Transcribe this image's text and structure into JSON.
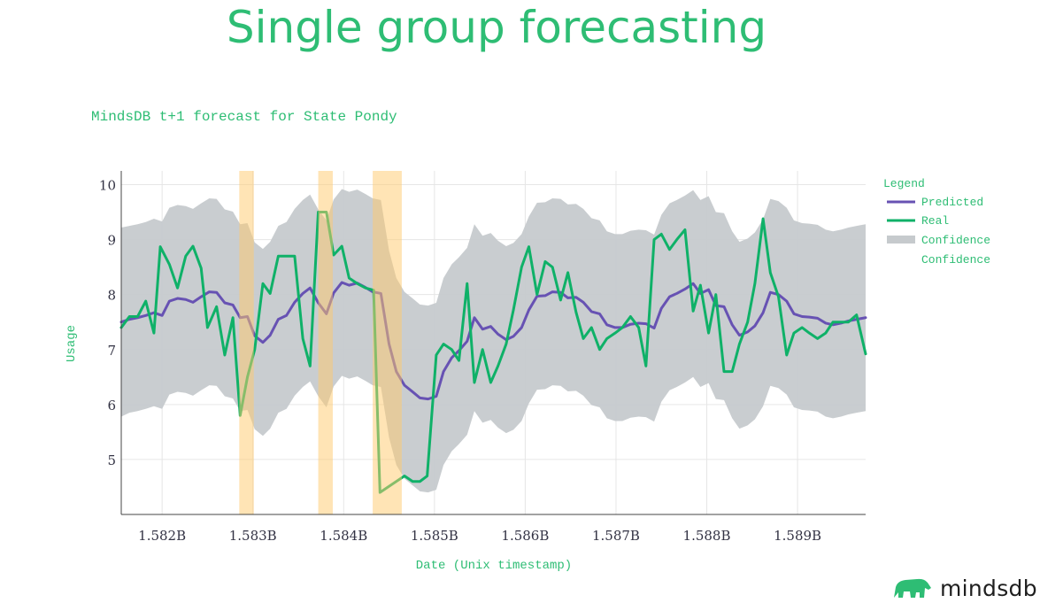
{
  "slide": {
    "title": "Single group forecasting",
    "brand": "mindsdb"
  },
  "colors": {
    "accent": "#2ebd74",
    "predicted": "#6752b3",
    "real": "#0fb168",
    "confidence": "#c6cacd",
    "anomaly": "#ffc96b",
    "axis_text": "#333344",
    "label_text": "#2ebd74"
  },
  "chart_data": {
    "type": "line",
    "title": "MindsDB t+1 forecast for State Pondy",
    "xlabel": "Date (Unix timestamp)",
    "ylabel": "Usage",
    "x_unit": "Unix timestamp",
    "xlim": [
      1581550000,
      1589750000
    ],
    "ylim": [
      4.0,
      10.25
    ],
    "x_ticks": [
      1582000000,
      1583000000,
      1584000000,
      1585000000,
      1586000000,
      1587000000,
      1588000000,
      1589000000
    ],
    "x_tick_labels": [
      "1.582B",
      "1.583B",
      "1.584B",
      "1.585B",
      "1.586B",
      "1.587B",
      "1.588B",
      "1.589B"
    ],
    "y_ticks": [
      5,
      6,
      7,
      8,
      9,
      10
    ],
    "y_tick_labels": [
      "5",
      "6",
      "7",
      "8",
      "9",
      "10"
    ],
    "grid": true,
    "legend": {
      "title": "Legend",
      "position": "right",
      "entries": [
        "Predicted",
        "Real",
        "Confidence",
        "Confidence"
      ]
    },
    "anomaly_ranges": [
      [
        1582850000,
        1583010000
      ],
      [
        1583720000,
        1583880000
      ],
      [
        1584320000,
        1584640000
      ]
    ],
    "series": [
      {
        "name": "Predicted",
        "kind": "line",
        "x": [
          1581550000,
          1581640000,
          1581730000,
          1581820000,
          1581910000,
          1582000000,
          1582080000,
          1582170000,
          1582260000,
          1582340000,
          1582430000,
          1582520000,
          1582600000,
          1582690000,
          1582780000,
          1582860000,
          1582940000,
          1583020000,
          1583110000,
          1583190000,
          1583280000,
          1583370000,
          1583460000,
          1583550000,
          1583630000,
          1583720000,
          1583810000,
          1583890000,
          1583980000,
          1584060000,
          1584150000,
          1584240000,
          1584320000,
          1584410000,
          1584500000,
          1584580000,
          1584670000,
          1584760000,
          1584840000,
          1584930000,
          1585020000,
          1585100000,
          1585190000,
          1585270000,
          1585360000,
          1585440000,
          1585530000,
          1585620000,
          1585700000,
          1585790000,
          1585870000,
          1585960000,
          1586040000,
          1586130000,
          1586220000,
          1586300000,
          1586390000,
          1586470000,
          1586560000,
          1586640000,
          1586730000,
          1586820000,
          1586900000,
          1586990000,
          1587070000,
          1587160000,
          1587250000,
          1587330000,
          1587420000,
          1587500000,
          1587590000,
          1587670000,
          1587760000,
          1587850000,
          1587930000,
          1588020000,
          1588100000,
          1588190000,
          1588280000,
          1588360000,
          1588450000,
          1588530000,
          1588620000,
          1588700000,
          1588790000,
          1588880000,
          1588960000,
          1589050000,
          1589130000,
          1589220000,
          1589310000,
          1589390000,
          1589480000,
          1589560000,
          1589650000,
          1589750000
        ],
        "y": [
          7.5,
          7.55,
          7.58,
          7.62,
          7.67,
          7.62,
          7.88,
          7.93,
          7.91,
          7.86,
          7.96,
          8.05,
          8.04,
          7.85,
          7.81,
          7.58,
          7.6,
          7.25,
          7.13,
          7.26,
          7.55,
          7.62,
          7.86,
          8.02,
          8.12,
          7.85,
          7.65,
          8.03,
          8.22,
          8.17,
          8.21,
          8.13,
          8.05,
          8.02,
          7.1,
          6.6,
          6.35,
          6.23,
          6.12,
          6.1,
          6.15,
          6.6,
          6.85,
          6.98,
          7.15,
          7.58,
          7.37,
          7.42,
          7.28,
          7.18,
          7.24,
          7.4,
          7.72,
          7.97,
          7.98,
          8.05,
          8.04,
          7.94,
          7.95,
          7.86,
          7.69,
          7.65,
          7.45,
          7.4,
          7.4,
          7.46,
          7.48,
          7.47,
          7.39,
          7.75,
          7.96,
          8.02,
          8.1,
          8.2,
          8.02,
          8.09,
          7.8,
          7.78,
          7.45,
          7.26,
          7.32,
          7.43,
          7.67,
          8.04,
          8.0,
          7.88,
          7.65,
          7.6,
          7.59,
          7.57,
          7.48,
          7.45,
          7.48,
          7.52,
          7.55,
          7.58
        ]
      },
      {
        "name": "Real",
        "kind": "line",
        "x": [
          1581550000,
          1581640000,
          1581730000,
          1581820000,
          1581910000,
          1581980000,
          1582080000,
          1582170000,
          1582260000,
          1582340000,
          1582430000,
          1582500000,
          1582600000,
          1582690000,
          1582780000,
          1582860000,
          1582940000,
          1583020000,
          1583110000,
          1583190000,
          1583280000,
          1583370000,
          1583460000,
          1583550000,
          1583630000,
          1583720000,
          1583810000,
          1583890000,
          1583980000,
          1584060000,
          1584150000,
          1584240000,
          1584330000,
          1584400000,
          1584670000,
          1584760000,
          1584840000,
          1584920000,
          1585020000,
          1585100000,
          1585190000,
          1585270000,
          1585360000,
          1585440000,
          1585530000,
          1585620000,
          1585700000,
          1585790000,
          1585870000,
          1585960000,
          1586040000,
          1586130000,
          1586220000,
          1586300000,
          1586390000,
          1586470000,
          1586560000,
          1586640000,
          1586730000,
          1586820000,
          1586900000,
          1586990000,
          1587070000,
          1587160000,
          1587250000,
          1587330000,
          1587420000,
          1587500000,
          1587590000,
          1587670000,
          1587760000,
          1587850000,
          1587930000,
          1588020000,
          1588100000,
          1588190000,
          1588280000,
          1588360000,
          1588450000,
          1588530000,
          1588620000,
          1588700000,
          1588790000,
          1588880000,
          1588960000,
          1589050000,
          1589130000,
          1589220000,
          1589310000,
          1589390000,
          1589480000,
          1589560000,
          1589650000,
          1589750000
        ],
        "y": [
          7.4,
          7.6,
          7.6,
          7.88,
          7.3,
          8.87,
          8.55,
          8.12,
          8.7,
          8.88,
          8.48,
          7.4,
          7.78,
          6.9,
          7.58,
          5.8,
          6.5,
          7.0,
          8.2,
          8.02,
          8.7,
          8.7,
          8.7,
          7.2,
          6.7,
          9.5,
          9.5,
          8.72,
          8.88,
          8.3,
          8.2,
          8.12,
          8.08,
          4.4,
          4.7,
          4.6,
          4.6,
          4.7,
          6.9,
          7.1,
          7.0,
          6.8,
          8.2,
          6.4,
          7.0,
          6.4,
          6.7,
          7.1,
          7.72,
          8.5,
          8.87,
          8.0,
          8.6,
          8.5,
          7.9,
          8.4,
          7.68,
          7.2,
          7.4,
          7.0,
          7.2,
          7.3,
          7.4,
          7.6,
          7.4,
          6.7,
          9.0,
          9.1,
          8.82,
          9.0,
          9.18,
          7.7,
          8.17,
          7.3,
          8.0,
          6.6,
          6.6,
          7.1,
          7.5,
          8.2,
          9.38,
          8.4,
          7.96,
          6.9,
          7.3,
          7.4,
          7.3,
          7.2,
          7.3,
          7.5,
          7.5,
          7.5,
          7.63,
          6.92
        ]
      },
      {
        "name": "Confidence",
        "kind": "band-upper",
        "x": [
          1581550000,
          1581640000,
          1581730000,
          1581820000,
          1581910000,
          1582000000,
          1582080000,
          1582170000,
          1582260000,
          1582340000,
          1582430000,
          1582520000,
          1582600000,
          1582690000,
          1582780000,
          1582860000,
          1582940000,
          1583020000,
          1583110000,
          1583190000,
          1583280000,
          1583370000,
          1583460000,
          1583550000,
          1583630000,
          1583720000,
          1583810000,
          1583890000,
          1583980000,
          1584060000,
          1584150000,
          1584240000,
          1584320000,
          1584410000,
          1584500000,
          1584580000,
          1584670000,
          1584760000,
          1584840000,
          1584930000,
          1585020000,
          1585100000,
          1585190000,
          1585270000,
          1585360000,
          1585440000,
          1585530000,
          1585620000,
          1585700000,
          1585790000,
          1585870000,
          1585960000,
          1586040000,
          1586130000,
          1586220000,
          1586300000,
          1586390000,
          1586470000,
          1586560000,
          1586640000,
          1586730000,
          1586820000,
          1586900000,
          1586990000,
          1587070000,
          1587160000,
          1587250000,
          1587330000,
          1587420000,
          1587500000,
          1587590000,
          1587670000,
          1587760000,
          1587850000,
          1587930000,
          1588020000,
          1588100000,
          1588190000,
          1588280000,
          1588360000,
          1588450000,
          1588530000,
          1588620000,
          1588700000,
          1588790000,
          1588880000,
          1588960000,
          1589050000,
          1589130000,
          1589220000,
          1589310000,
          1589390000,
          1589480000,
          1589560000,
          1589650000,
          1589750000
        ],
        "y": [
          9.22,
          9.25,
          9.28,
          9.32,
          9.38,
          9.33,
          9.58,
          9.63,
          9.61,
          9.56,
          9.66,
          9.75,
          9.74,
          9.55,
          9.51,
          9.28,
          9.3,
          8.95,
          8.83,
          8.96,
          9.25,
          9.32,
          9.56,
          9.72,
          9.82,
          9.55,
          9.35,
          9.73,
          9.92,
          9.87,
          9.91,
          9.83,
          9.75,
          9.72,
          8.8,
          8.3,
          8.05,
          7.93,
          7.82,
          7.8,
          7.85,
          8.3,
          8.55,
          8.68,
          8.85,
          9.28,
          9.07,
          9.12,
          8.98,
          8.88,
          8.94,
          9.1,
          9.42,
          9.67,
          9.68,
          9.75,
          9.74,
          9.64,
          9.65,
          9.56,
          9.39,
          9.35,
          9.15,
          9.1,
          9.1,
          9.16,
          9.18,
          9.17,
          9.09,
          9.45,
          9.66,
          9.72,
          9.8,
          9.9,
          9.72,
          9.79,
          9.5,
          9.48,
          9.15,
          8.96,
          9.02,
          9.13,
          9.37,
          9.74,
          9.7,
          9.58,
          9.35,
          9.3,
          9.29,
          9.27,
          9.18,
          9.15,
          9.18,
          9.22,
          9.25,
          9.28
        ]
      },
      {
        "name": "Confidence",
        "kind": "band-lower",
        "x": [
          1581550000,
          1581640000,
          1581730000,
          1581820000,
          1581910000,
          1582000000,
          1582080000,
          1582170000,
          1582260000,
          1582340000,
          1582430000,
          1582520000,
          1582600000,
          1582690000,
          1582780000,
          1582860000,
          1582940000,
          1583020000,
          1583110000,
          1583190000,
          1583280000,
          1583370000,
          1583460000,
          1583550000,
          1583630000,
          1583720000,
          1583810000,
          1583890000,
          1583980000,
          1584060000,
          1584150000,
          1584240000,
          1584320000,
          1584410000,
          1584500000,
          1584580000,
          1584670000,
          1584760000,
          1584840000,
          1584930000,
          1585020000,
          1585100000,
          1585190000,
          1585270000,
          1585360000,
          1585440000,
          1585530000,
          1585620000,
          1585700000,
          1585790000,
          1585870000,
          1585960000,
          1586040000,
          1586130000,
          1586220000,
          1586300000,
          1586390000,
          1586470000,
          1586560000,
          1586640000,
          1586730000,
          1586820000,
          1586900000,
          1586990000,
          1587070000,
          1587160000,
          1587250000,
          1587330000,
          1587420000,
          1587500000,
          1587590000,
          1587670000,
          1587760000,
          1587850000,
          1587930000,
          1588020000,
          1588100000,
          1588190000,
          1588280000,
          1588360000,
          1588450000,
          1588530000,
          1588620000,
          1588700000,
          1588790000,
          1588880000,
          1588960000,
          1589050000,
          1589130000,
          1589220000,
          1589310000,
          1589390000,
          1589480000,
          1589560000,
          1589650000,
          1589750000
        ],
        "y": [
          5.78,
          5.85,
          5.88,
          5.92,
          5.97,
          5.92,
          6.18,
          6.23,
          6.21,
          6.16,
          6.26,
          6.35,
          6.34,
          6.15,
          6.11,
          5.88,
          5.9,
          5.55,
          5.43,
          5.56,
          5.85,
          5.92,
          6.16,
          6.32,
          6.42,
          6.15,
          5.95,
          6.33,
          6.52,
          6.47,
          6.51,
          6.43,
          6.35,
          6.32,
          5.4,
          4.9,
          4.65,
          4.53,
          4.42,
          4.4,
          4.45,
          4.9,
          5.15,
          5.28,
          5.45,
          5.88,
          5.67,
          5.72,
          5.58,
          5.48,
          5.54,
          5.7,
          6.02,
          6.27,
          6.28,
          6.35,
          6.34,
          6.24,
          6.25,
          6.16,
          5.99,
          5.95,
          5.75,
          5.7,
          5.7,
          5.76,
          5.78,
          5.77,
          5.69,
          6.05,
          6.26,
          6.32,
          6.4,
          6.5,
          6.32,
          6.39,
          6.1,
          6.08,
          5.75,
          5.56,
          5.62,
          5.73,
          5.97,
          6.34,
          6.3,
          6.18,
          5.95,
          5.9,
          5.89,
          5.87,
          5.78,
          5.75,
          5.78,
          5.82,
          5.85,
          5.88
        ]
      }
    ]
  }
}
